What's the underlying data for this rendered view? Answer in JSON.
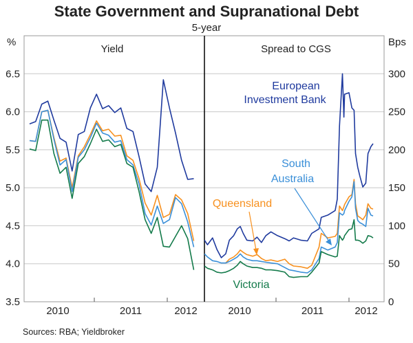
{
  "title": "State Government and Supranational Debt",
  "subtitle": "5-year",
  "source": "Sources: RBA; Yieldbroker",
  "colors": {
    "European Investment Bank": "#1f3a9e",
    "South Australia": "#3a8fd8",
    "Queensland": "#f7901e",
    "Victoria": "#137a4a",
    "grid": "#c8c8c8"
  },
  "chart_data": [
    {
      "type": "line",
      "panel_title": "Yield",
      "ylabel": "%",
      "ylim": [
        3.5,
        7.0
      ],
      "yticks": [
        "3.5",
        "4.0",
        "4.5",
        "5.0",
        "5.5",
        "6.0",
        "6.5"
      ],
      "xticks": [
        "2010",
        "2011",
        "2012"
      ],
      "grid": true,
      "x": [
        "2010-02",
        "2010-03",
        "2010-04",
        "2010-05",
        "2010-06",
        "2010-07",
        "2010-08",
        "2010-09",
        "2010-10",
        "2010-11",
        "2010-12",
        "2011-01",
        "2011-02",
        "2011-03",
        "2011-04",
        "2011-05",
        "2011-06",
        "2011-07",
        "2011-08",
        "2011-09",
        "2011-10",
        "2011-11",
        "2011-12",
        "2012-01",
        "2012-02",
        "2012-03",
        "2012-04",
        "2012-05"
      ],
      "series": [
        {
          "name": "European Investment Bank",
          "values": [
            5.84,
            5.87,
            6.1,
            6.14,
            5.89,
            5.65,
            5.6,
            5.22,
            5.7,
            5.74,
            6.05,
            6.23,
            6.04,
            6.08,
            5.99,
            6.05,
            5.78,
            5.74,
            5.41,
            5.05,
            4.95,
            5.27,
            6.42,
            6.05,
            5.72,
            5.36,
            5.11,
            5.12
          ]
        },
        {
          "name": "Queensland",
          "values": [
            5.62,
            5.61,
            6.0,
            6.02,
            5.66,
            5.35,
            5.39,
            5.0,
            5.42,
            5.54,
            5.7,
            5.88,
            5.75,
            5.77,
            5.68,
            5.69,
            5.42,
            5.36,
            5.12,
            4.8,
            4.64,
            4.9,
            4.61,
            4.65,
            4.91,
            4.84,
            4.66,
            4.3
          ]
        },
        {
          "name": "South Australia",
          "values": [
            5.62,
            5.61,
            6.0,
            6.02,
            5.64,
            5.3,
            5.37,
            4.95,
            5.4,
            5.5,
            5.66,
            5.85,
            5.72,
            5.69,
            5.6,
            5.62,
            5.37,
            5.3,
            5.05,
            4.66,
            4.51,
            4.76,
            4.53,
            4.58,
            4.87,
            4.79,
            4.55,
            4.22
          ]
        },
        {
          "name": "Victoria",
          "values": [
            5.51,
            5.49,
            5.89,
            5.89,
            5.45,
            5.19,
            5.27,
            4.86,
            5.32,
            5.41,
            5.58,
            5.77,
            5.61,
            5.63,
            5.54,
            5.57,
            5.32,
            5.27,
            4.95,
            4.58,
            4.4,
            4.61,
            4.23,
            4.22,
            4.36,
            4.5,
            4.33,
            3.92
          ]
        }
      ]
    },
    {
      "type": "line",
      "panel_title": "Spread to CGS",
      "ylabel": "Bps",
      "ylim": [
        0,
        350
      ],
      "yticks": [
        "0",
        "50",
        "100",
        "150",
        "200",
        "250",
        "300"
      ],
      "xticks": [
        "2010",
        "2011",
        "2012"
      ],
      "grid": true,
      "x": [
        2010.02,
        2010.06,
        2010.13,
        2010.19,
        2010.25,
        2010.31,
        2010.36,
        2010.42,
        2010.47,
        2010.51,
        2010.55,
        2010.6,
        2010.68,
        2010.74,
        2010.8,
        2010.86,
        2010.93,
        2011.02,
        2011.12,
        2011.18,
        2011.24,
        2011.34,
        2011.43,
        2011.49,
        2011.59,
        2011.62,
        2011.71,
        2011.81,
        2011.84,
        2011.87,
        2011.91,
        2011.93,
        2011.94,
        2012.0,
        2012.04,
        2012.07,
        2012.09,
        2012.12,
        2012.15,
        2012.19,
        2012.23,
        2012.26,
        2012.3,
        2012.33
      ],
      "series": [
        {
          "name": "European Investment Bank",
          "label": [
            "European",
            "Investment Bank"
          ],
          "values": [
            81,
            75,
            84,
            69,
            58,
            63,
            81,
            87,
            96,
            99,
            90,
            81,
            80,
            85,
            78,
            87,
            92,
            87,
            83,
            80,
            84,
            81,
            80,
            90,
            96,
            111,
            114,
            120,
            135,
            231,
            300,
            243,
            273,
            275,
            255,
            252,
            195,
            177,
            165,
            151,
            156,
            195,
            204,
            208
          ]
        },
        {
          "name": "Queensland",
          "label": [
            "Queensland"
          ],
          "values": [
            null,
            null,
            null,
            null,
            null,
            51,
            56,
            59,
            63,
            68,
            65,
            62,
            60,
            62,
            57,
            54,
            55,
            53,
            56,
            50,
            47,
            46,
            44,
            48,
            72,
            90,
            84,
            86,
            90,
            126,
            120,
            125,
            128,
            138,
            141,
            161,
            129,
            113,
            111,
            108,
            114,
            129,
            123,
            122
          ]
        },
        {
          "name": "South Australia",
          "label": [
            "South",
            "Australia"
          ],
          "values": [
            63,
            59,
            54,
            53,
            51,
            51,
            53,
            56,
            59,
            63,
            59,
            56,
            54,
            54,
            53,
            52,
            51,
            50,
            45,
            42,
            41,
            39,
            38,
            42,
            57,
            72,
            68,
            72,
            78,
            117,
            114,
            116,
            120,
            132,
            138,
            158,
            123,
            107,
            104,
            102,
            99,
            123,
            114,
            113
          ]
        },
        {
          "name": "Victoria",
          "label": [
            "Victoria"
          ],
          "values": [
            47,
            44,
            42,
            39,
            38,
            39,
            41,
            44,
            48,
            53,
            50,
            47,
            45,
            45,
            44,
            42,
            42,
            41,
            39,
            33,
            32,
            33,
            33,
            39,
            51,
            66,
            62,
            59,
            60,
            87,
            81,
            84,
            87,
            95,
            96,
            108,
            81,
            81,
            80,
            77,
            80,
            87,
            86,
            84
          ]
        }
      ]
    }
  ]
}
